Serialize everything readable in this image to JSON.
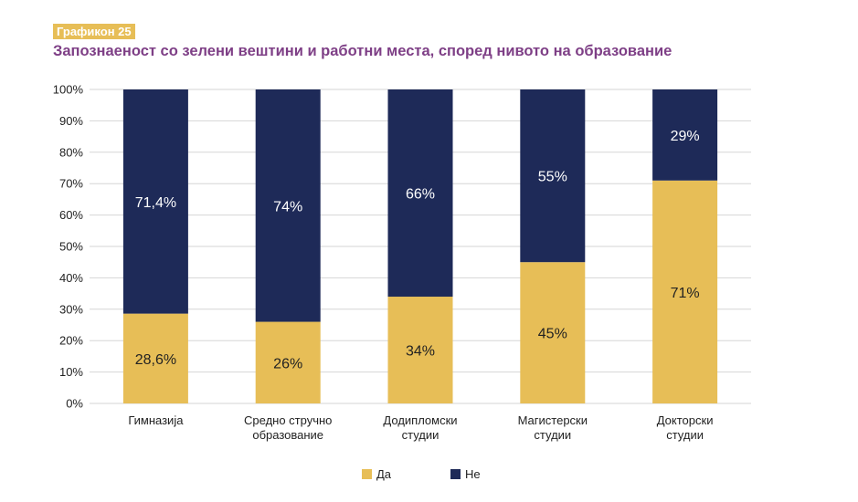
{
  "figure_label": "Графикон 25",
  "colors": {
    "yes": "#E7BE57",
    "no": "#1E2A58",
    "title": "#7E3F86",
    "grid": "#D6D6D6"
  },
  "chart_data": {
    "type": "bar",
    "stacked": true,
    "title": "Запознаеност со зелени вештини и работни места, според нивото на образование",
    "categories": [
      [
        "Гимназија"
      ],
      [
        "Средно стручно",
        "образование"
      ],
      [
        "Додипломски",
        "студии"
      ],
      [
        "Магистерски",
        "студии"
      ],
      [
        "Докторски",
        "студии"
      ]
    ],
    "series": [
      {
        "name": "Да",
        "values": [
          28.6,
          26,
          34,
          45,
          71
        ],
        "labels": [
          "28,6%",
          "26%",
          "34%",
          "45%",
          "71%"
        ]
      },
      {
        "name": "Не",
        "values": [
          71.4,
          74,
          66,
          55,
          29
        ],
        "labels": [
          "71,4%",
          "74%",
          "66%",
          "55%",
          "29%"
        ]
      }
    ],
    "ylim": [
      0,
      100
    ],
    "yticks": [
      "0%",
      "10%",
      "20%",
      "30%",
      "40%",
      "50%",
      "60%",
      "70%",
      "80%",
      "90%",
      "100%"
    ],
    "grid": true,
    "legend_position": "bottom-center"
  }
}
